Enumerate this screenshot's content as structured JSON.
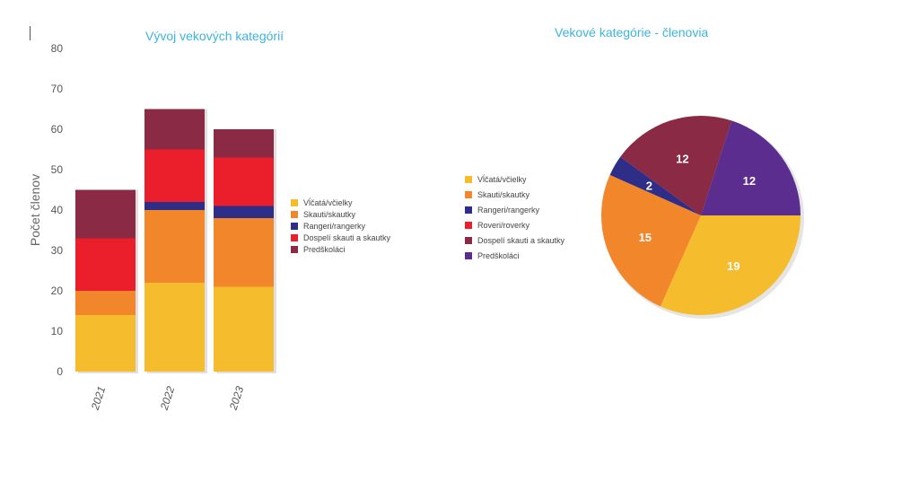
{
  "chart_data": [
    {
      "type": "bar",
      "stacked": true,
      "title": "Vývoj vekových kategórií",
      "ylabel": "Počet členov",
      "xlabel": "",
      "ylim": [
        0,
        80
      ],
      "yticks": [
        0,
        10,
        20,
        30,
        40,
        50,
        60,
        70,
        80
      ],
      "categories": [
        "2021",
        "2022",
        "2023"
      ],
      "grid": false,
      "legend_position": "right",
      "series": [
        {
          "name": "Vĺčatá/včielky",
          "color": "#f5bd2e",
          "values": [
            14,
            22,
            21
          ]
        },
        {
          "name": "Skauti/skautky",
          "color": "#f2862a",
          "values": [
            6,
            18,
            17
          ]
        },
        {
          "name": "Rangeri/rangerky",
          "color": "#2e2d88",
          "values": [
            0,
            2,
            3
          ]
        },
        {
          "name": "Dospelí skauti a skautky",
          "color": "#ea1f2b",
          "values": [
            13,
            13,
            12
          ]
        },
        {
          "name": "Predškoláci",
          "color": "#8b2a45",
          "values": [
            12,
            10,
            7
          ]
        }
      ]
    },
    {
      "type": "pie",
      "title": "Vekové kategórie - členovia",
      "legend_position": "left",
      "slices": [
        {
          "name": "Vĺčatá/včielky",
          "color": "#f5bd2e",
          "value": 19
        },
        {
          "name": "Skauti/skautky",
          "color": "#f2862a",
          "value": 15
        },
        {
          "name": "Rangeri/rangerky",
          "color": "#2e2d88",
          "value": 2
        },
        {
          "name": "Roveri/roverky",
          "color": "#ea1f2b",
          "value": 0
        },
        {
          "name": "Dospelí skauti a skautky",
          "color": "#8b2a45",
          "value": 12
        },
        {
          "name": "Predškoláci",
          "color": "#5b2d8e",
          "value": 12
        }
      ]
    }
  ]
}
